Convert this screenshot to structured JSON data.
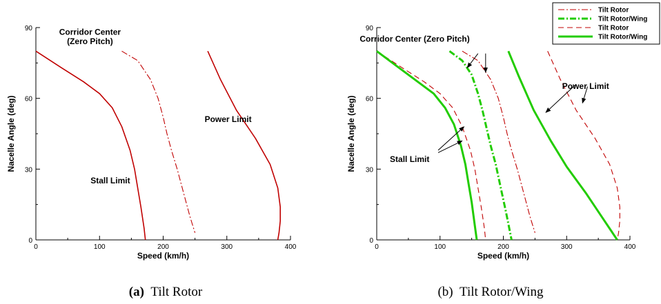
{
  "figure": {
    "captions": [
      {
        "tag": "(a)",
        "text": "Tilt Rotor"
      },
      {
        "tag": "(b)",
        "text": "Tilt Rotor/Wing"
      }
    ]
  },
  "colors": {
    "tilt_rotor": "#c00000",
    "tilt_rotor_wing": "#22cc00"
  },
  "chart_data": [
    {
      "type": "line",
      "title": "",
      "xlabel": "Speed (km/h)",
      "ylabel": "Nacelle Angle (deg)",
      "xlim": [
        0,
        400
      ],
      "ylim": [
        0,
        90
      ],
      "xticks": [
        0,
        100,
        200,
        300,
        400
      ],
      "yticks": [
        0,
        30,
        60,
        90
      ],
      "grid": false,
      "annotations": [
        {
          "text": "Corridor Center",
          "x": 85,
          "y": 87
        },
        {
          "text": "(Zero Pitch)",
          "x": 85,
          "y": 83
        },
        {
          "text": "Power Limit",
          "x": 302,
          "y": 50
        },
        {
          "text": "Stall Limit",
          "x": 117,
          "y": 24
        }
      ],
      "series": [
        {
          "name": "Tilt Rotor",
          "role": "stall_limit",
          "color": "#c00000",
          "dash": "solid",
          "width": 1.6,
          "x": [
            0,
            40,
            75,
            100,
            120,
            135,
            148,
            155,
            160,
            165,
            170,
            172
          ],
          "y": [
            80,
            73,
            67,
            62,
            56,
            48,
            38,
            30,
            22,
            14,
            5,
            0
          ]
        },
        {
          "name": "Tilt Rotor",
          "role": "corridor_center",
          "color": "#c00000",
          "dash": "dashdot",
          "width": 1.1,
          "x": [
            135,
            160,
            180,
            192,
            200,
            206,
            213,
            222,
            232,
            242,
            250
          ],
          "y": [
            80,
            76,
            68,
            60,
            52,
            45,
            38,
            30,
            20,
            10,
            3
          ]
        },
        {
          "name": "Tilt Rotor",
          "role": "power_limit",
          "color": "#c00000",
          "dash": "solid",
          "width": 1.6,
          "x": [
            270,
            290,
            315,
            345,
            368,
            380,
            384,
            384,
            382,
            380
          ],
          "y": [
            80,
            68,
            55,
            43,
            32,
            22,
            14,
            8,
            3,
            0
          ]
        }
      ]
    },
    {
      "type": "line",
      "title": "",
      "xlabel": "Speed (km/h)",
      "ylabel": "Nacelle Angle (deg)",
      "xlim": [
        0,
        400
      ],
      "ylim": [
        0,
        90
      ],
      "xticks": [
        0,
        100,
        200,
        300,
        400
      ],
      "yticks": [
        0,
        30,
        60,
        90
      ],
      "grid": false,
      "legend": {
        "placement": "top-right",
        "entries": [
          {
            "label": "Tilt Rotor",
            "color": "#c00000",
            "dash": "dashdot",
            "width": 1.1
          },
          {
            "label": "Tilt Rotor/Wing",
            "color": "#22cc00",
            "dash": "dashdot",
            "width": 3
          },
          {
            "label": "Tilt Rotor",
            "color": "#c00000",
            "dash": "dashed",
            "width": 1.1
          },
          {
            "label": "Tilt Rotor/Wing",
            "color": "#22cc00",
            "dash": "solid",
            "width": 3
          }
        ]
      },
      "annotations": [
        {
          "text": "Corridor Center (Zero Pitch)",
          "x": 60,
          "y": 84
        },
        {
          "text": "Power Limit",
          "x": 330,
          "y": 64
        },
        {
          "text": "Stall Limit",
          "x": 52,
          "y": 33
        }
      ],
      "arrows": [
        {
          "from": [
            160,
            79
          ],
          "to": [
            143,
            73
          ]
        },
        {
          "from": [
            172,
            79
          ],
          "to": [
            172,
            71
          ]
        },
        {
          "from": [
            315,
            66
          ],
          "to": [
            267,
            54
          ]
        },
        {
          "from": [
            333,
            65
          ],
          "to": [
            325,
            58
          ]
        },
        {
          "from": [
            97,
            38
          ],
          "to": [
            138,
            48
          ]
        },
        {
          "from": [
            97,
            37
          ],
          "to": [
            135,
            42
          ]
        }
      ],
      "series": [
        {
          "name": "Tilt Rotor",
          "role": "stall_limit",
          "color": "#c00000",
          "dash": "dashed",
          "width": 1.1,
          "x": [
            0,
            40,
            75,
            100,
            120,
            135,
            148,
            155,
            160,
            165,
            170,
            172
          ],
          "y": [
            80,
            73,
            67,
            62,
            56,
            48,
            38,
            30,
            22,
            14,
            5,
            0
          ]
        },
        {
          "name": "Tilt Rotor/Wing",
          "role": "stall_limit",
          "color": "#22cc00",
          "dash": "solid",
          "width": 3,
          "x": [
            0,
            35,
            65,
            90,
            108,
            122,
            133,
            140,
            145,
            150,
            155,
            158
          ],
          "y": [
            80,
            73,
            67,
            62,
            56,
            49,
            40,
            32,
            24,
            16,
            6,
            0
          ]
        },
        {
          "name": "Tilt Rotor",
          "role": "corridor_center",
          "color": "#c00000",
          "dash": "dashdot",
          "width": 1.1,
          "x": [
            135,
            160,
            180,
            192,
            200,
            206,
            213,
            222,
            232,
            242,
            250
          ],
          "y": [
            80,
            76,
            68,
            60,
            52,
            45,
            38,
            30,
            20,
            10,
            3
          ]
        },
        {
          "name": "Tilt Rotor/Wing",
          "role": "corridor_center",
          "color": "#22cc00",
          "dash": "dashdot",
          "width": 3,
          "x": [
            115,
            135,
            150,
            160,
            167,
            173,
            180,
            188,
            196,
            204,
            210,
            213
          ],
          "y": [
            80,
            76,
            70,
            62,
            55,
            48,
            40,
            32,
            22,
            12,
            4,
            0
          ]
        },
        {
          "name": "Tilt Rotor",
          "role": "power_limit",
          "color": "#c00000",
          "dash": "dashed",
          "width": 1.1,
          "x": [
            270,
            290,
            315,
            345,
            368,
            380,
            384,
            384,
            382,
            380
          ],
          "y": [
            80,
            68,
            55,
            43,
            32,
            22,
            14,
            8,
            3,
            0
          ]
        },
        {
          "name": "Tilt Rotor/Wing",
          "role": "power_limit",
          "color": "#22cc00",
          "dash": "solid",
          "width": 3,
          "x": [
            208,
            225,
            248,
            275,
            300,
            330,
            355,
            380
          ],
          "y": [
            80,
            69,
            55,
            42,
            31,
            20,
            10,
            0
          ]
        }
      ]
    }
  ]
}
